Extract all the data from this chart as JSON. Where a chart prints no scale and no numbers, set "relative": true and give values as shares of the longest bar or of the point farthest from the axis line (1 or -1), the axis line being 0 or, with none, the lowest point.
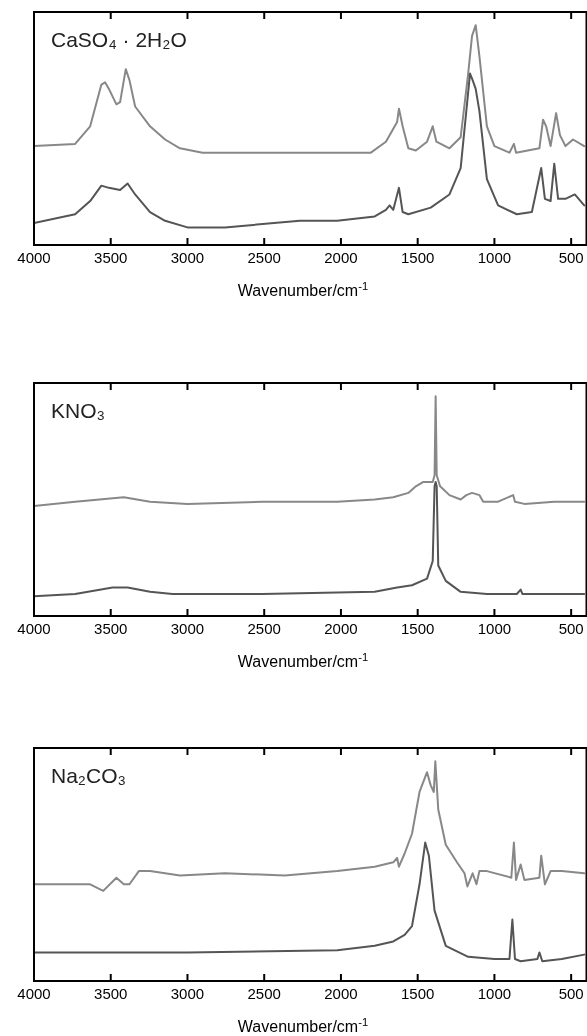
{
  "chart_data": [
    {
      "type": "line",
      "title": "CaSO₄ · 2H₂O",
      "xlabel": "Wavenumber/cm$^{-1}$",
      "relative": true,
      "tick_labels": "x",
      "xlim": [
        4000,
        400
      ],
      "xticks": [
        4000,
        3500,
        3000,
        2500,
        2000,
        1500,
        1000,
        500
      ],
      "series": [
        {
          "color": "#888888",
          "x": [
            4000,
            3732,
            3634,
            3561,
            3537,
            3512,
            3463,
            3439,
            3402,
            3378,
            3341,
            3244,
            3146,
            3049,
            2902,
            2512,
            2268,
            1805,
            1707,
            1634,
            1622,
            1598,
            1561,
            1512,
            1439,
            1402,
            1378,
            1293,
            1220,
            1171,
            1146,
            1122,
            1098,
            1049,
            1000,
            902,
            873,
            859,
            707,
            683,
            663,
            634,
            598,
            573,
            537,
            488,
            415
          ],
          "values": [
            0.45,
            0.46,
            0.54,
            0.73,
            0.74,
            0.71,
            0.64,
            0.65,
            0.8,
            0.75,
            0.63,
            0.54,
            0.48,
            0.44,
            0.42,
            0.42,
            0.42,
            0.42,
            0.47,
            0.56,
            0.62,
            0.54,
            0.44,
            0.43,
            0.47,
            0.54,
            0.47,
            0.44,
            0.49,
            0.78,
            0.95,
            1.0,
            0.86,
            0.54,
            0.45,
            0.42,
            0.46,
            0.42,
            0.44,
            0.57,
            0.54,
            0.45,
            0.6,
            0.5,
            0.45,
            0.48,
            0.45
          ]
        },
        {
          "color": "#555555",
          "x": [
            4000,
            3732,
            3634,
            3561,
            3512,
            3439,
            3390,
            3341,
            3244,
            3146,
            3000,
            2756,
            2268,
            2024,
            1780,
            1707,
            1683,
            1659,
            1622,
            1598,
            1561,
            1415,
            1293,
            1220,
            1183,
            1159,
            1142,
            1122,
            1098,
            1049,
            976,
            854,
            756,
            695,
            671,
            634,
            610,
            585,
            537,
            476,
            415
          ],
          "values": [
            0.1,
            0.14,
            0.2,
            0.27,
            0.26,
            0.25,
            0.28,
            0.23,
            0.15,
            0.11,
            0.08,
            0.08,
            0.11,
            0.11,
            0.13,
            0.16,
            0.18,
            0.16,
            0.26,
            0.15,
            0.14,
            0.17,
            0.23,
            0.35,
            0.61,
            0.78,
            0.75,
            0.71,
            0.61,
            0.3,
            0.18,
            0.14,
            0.15,
            0.35,
            0.21,
            0.2,
            0.37,
            0.21,
            0.21,
            0.23,
            0.18
          ]
        }
      ]
    },
    {
      "type": "line",
      "title": "KNO₃",
      "xlabel": "Wavenumber/cm$^{-1}$",
      "relative": true,
      "tick_labels": "x",
      "xlim": [
        4000,
        400
      ],
      "xticks": [
        4000,
        3500,
        3000,
        2500,
        2000,
        1500,
        1000,
        500
      ],
      "series": [
        {
          "color": "#888888",
          "x": [
            4000,
            3732,
            3415,
            3244,
            3000,
            2512,
            2024,
            1780,
            1659,
            1561,
            1512,
            1463,
            1402,
            1390,
            1383,
            1376,
            1354,
            1293,
            1220,
            1183,
            1146,
            1098,
            1073,
            976,
            878,
            866,
            805,
            610,
            561,
            415
          ],
          "values": [
            0.5,
            0.52,
            0.54,
            0.52,
            0.51,
            0.52,
            0.52,
            0.53,
            0.54,
            0.56,
            0.59,
            0.61,
            0.61,
            0.64,
            1.0,
            0.64,
            0.59,
            0.55,
            0.53,
            0.55,
            0.56,
            0.55,
            0.52,
            0.52,
            0.55,
            0.52,
            0.51,
            0.52,
            0.52,
            0.52
          ]
        },
        {
          "color": "#555555",
          "x": [
            4000,
            3732,
            3488,
            3390,
            3244,
            3098,
            2512,
            1780,
            1634,
            1537,
            1439,
            1402,
            1390,
            1383,
            1376,
            1366,
            1317,
            1220,
            1049,
            854,
            829,
            817,
            415
          ],
          "values": [
            0.09,
            0.1,
            0.13,
            0.13,
            0.11,
            0.1,
            0.1,
            0.11,
            0.13,
            0.14,
            0.17,
            0.25,
            0.59,
            0.61,
            0.59,
            0.23,
            0.16,
            0.11,
            0.1,
            0.1,
            0.12,
            0.1,
            0.1
          ]
        }
      ]
    },
    {
      "type": "line",
      "title": "Na₂CO₃",
      "xlabel": "Wavenumber/cm$^{-1}$",
      "relative": true,
      "tick_labels": "x",
      "xlim": [
        4000,
        400
      ],
      "xticks": [
        4000,
        3500,
        3000,
        2500,
        2000,
        1500,
        1000,
        500
      ],
      "series": [
        {
          "color": "#888888",
          "x": [
            4000,
            3634,
            3549,
            3463,
            3415,
            3378,
            3317,
            3244,
            3049,
            2756,
            2366,
            2024,
            1780,
            1659,
            1634,
            1622,
            1585,
            1537,
            1488,
            1439,
            1415,
            1395,
            1385,
            1366,
            1317,
            1244,
            1195,
            1176,
            1142,
            1117,
            1098,
            1049,
            890,
            873,
            859,
            829,
            805,
            707,
            695,
            671,
            634,
            561,
            415
          ],
          "values": [
            0.44,
            0.44,
            0.41,
            0.47,
            0.44,
            0.44,
            0.5,
            0.5,
            0.48,
            0.49,
            0.48,
            0.5,
            0.52,
            0.54,
            0.56,
            0.52,
            0.58,
            0.67,
            0.86,
            0.95,
            0.89,
            0.86,
            1.0,
            0.78,
            0.62,
            0.54,
            0.49,
            0.43,
            0.49,
            0.44,
            0.5,
            0.5,
            0.47,
            0.63,
            0.46,
            0.53,
            0.46,
            0.47,
            0.57,
            0.44,
            0.5,
            0.5,
            0.49
          ]
        },
        {
          "color": "#555555",
          "x": [
            4000,
            3000,
            2024,
            1780,
            1659,
            1585,
            1537,
            1488,
            1451,
            1427,
            1390,
            1317,
            1171,
            1000,
            902,
            883,
            866,
            829,
            720,
            707,
            688,
            561,
            415
          ],
          "values": [
            0.13,
            0.13,
            0.14,
            0.16,
            0.18,
            0.21,
            0.25,
            0.44,
            0.63,
            0.57,
            0.32,
            0.16,
            0.11,
            0.1,
            0.1,
            0.28,
            0.1,
            0.09,
            0.1,
            0.13,
            0.09,
            0.1,
            0.12
          ]
        }
      ]
    }
  ]
}
